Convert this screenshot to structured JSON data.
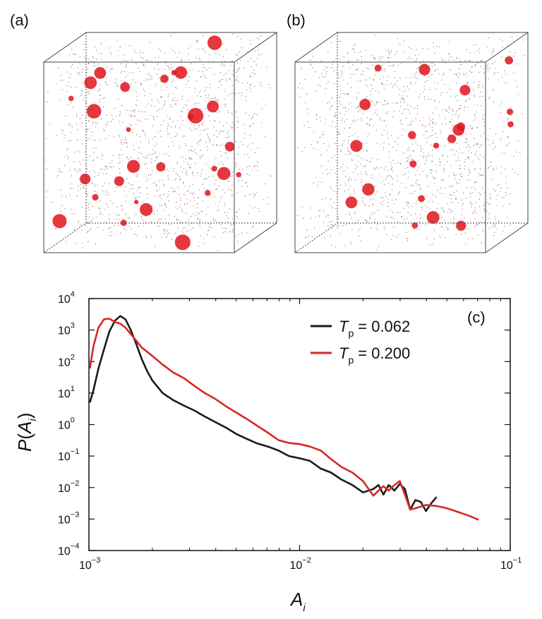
{
  "panels": {
    "a_label": "(a)",
    "b_label": "(b)",
    "c_label": "(c)"
  },
  "colors": {
    "series_black": "#1a1a1a",
    "series_red": "#d62728",
    "particle_black": "#222222",
    "cluster_red": "#e0141c",
    "box_edge": "#444444"
  },
  "chart_data": {
    "type": "line",
    "xlabel": "A_i",
    "ylabel": "P(A_i)",
    "xscale": "log",
    "yscale": "log",
    "xlim": [
      0.001,
      0.1
    ],
    "ylim": [
      0.0001,
      10000
    ],
    "x_ticks": [
      {
        "mantissa": "10",
        "exp": "−3"
      },
      {
        "mantissa": "10",
        "exp": "−2"
      },
      {
        "mantissa": "10",
        "exp": "−1"
      }
    ],
    "y_ticks": [
      {
        "mantissa": "10",
        "exp": "−4"
      },
      {
        "mantissa": "10",
        "exp": "−3"
      },
      {
        "mantissa": "10",
        "exp": "−2"
      },
      {
        "mantissa": "10",
        "exp": "−1"
      },
      {
        "mantissa": "10",
        "exp": "0"
      },
      {
        "mantissa": "10",
        "exp": "1"
      },
      {
        "mantissa": "10",
        "exp": "2"
      },
      {
        "mantissa": "10",
        "exp": "3"
      },
      {
        "mantissa": "10",
        "exp": "4"
      }
    ],
    "legend_position": "top-right",
    "series": [
      {
        "name": "T_p = 0.062",
        "label_var": "T",
        "label_sub": "p",
        "label_value": "= 0.062",
        "color": "#1a1a1a",
        "x": [
          0.00101,
          0.00105,
          0.00111,
          0.00118,
          0.00125,
          0.00133,
          0.00141,
          0.00149,
          0.00158,
          0.00168,
          0.00178,
          0.00189,
          0.002,
          0.00224,
          0.00251,
          0.00282,
          0.00316,
          0.00355,
          0.00398,
          0.00447,
          0.00501,
          0.00562,
          0.00631,
          0.00708,
          0.00794,
          0.00891,
          0.01,
          0.0112,
          0.0126,
          0.0141,
          0.0158,
          0.0178,
          0.02,
          0.0224,
          0.0237,
          0.025,
          0.0265,
          0.0282,
          0.0299,
          0.0316,
          0.0335,
          0.0355,
          0.0376,
          0.0398,
          0.0422,
          0.0447
        ],
        "y": [
          5,
          12,
          60,
          250,
          900,
          2000,
          2800,
          2200,
          1000,
          350,
          120,
          50,
          25,
          10,
          6,
          4,
          2.8,
          1.8,
          1.2,
          0.8,
          0.5,
          0.35,
          0.25,
          0.2,
          0.15,
          0.1,
          0.085,
          0.07,
          0.04,
          0.03,
          0.018,
          0.012,
          0.007,
          0.009,
          0.012,
          0.006,
          0.012,
          0.008,
          0.013,
          0.009,
          0.002,
          0.004,
          0.0035,
          0.0018,
          0.0032,
          0.005
        ]
      },
      {
        "name": "T_p = 0.200",
        "label_var": "T",
        "label_sub": "p",
        "label_value": "= 0.200",
        "color": "#d62728",
        "x": [
          0.00101,
          0.00105,
          0.00111,
          0.00118,
          0.00125,
          0.00133,
          0.00141,
          0.00149,
          0.00158,
          0.00168,
          0.00178,
          0.002,
          0.00224,
          0.00251,
          0.00282,
          0.00316,
          0.00355,
          0.00398,
          0.00447,
          0.00501,
          0.00562,
          0.00631,
          0.00708,
          0.00794,
          0.00891,
          0.01,
          0.0112,
          0.0126,
          0.0141,
          0.0158,
          0.0178,
          0.02,
          0.0224,
          0.0237,
          0.025,
          0.0265,
          0.0282,
          0.0299,
          0.0316,
          0.0335,
          0.0355,
          0.0398,
          0.0447,
          0.0501,
          0.0562,
          0.0631,
          0.0708
        ],
        "y": [
          60,
          300,
          1200,
          2200,
          2300,
          1800,
          1600,
          1200,
          750,
          450,
          280,
          150,
          80,
          45,
          30,
          17,
          10,
          6.5,
          3.8,
          2.4,
          1.5,
          0.9,
          0.55,
          0.32,
          0.26,
          0.24,
          0.2,
          0.15,
          0.08,
          0.045,
          0.03,
          0.016,
          0.0055,
          0.008,
          0.011,
          0.008,
          0.012,
          0.016,
          0.006,
          0.002,
          0.0022,
          0.0028,
          0.0026,
          0.0022,
          0.0017,
          0.0013,
          0.00095
        ]
      }
    ]
  }
}
